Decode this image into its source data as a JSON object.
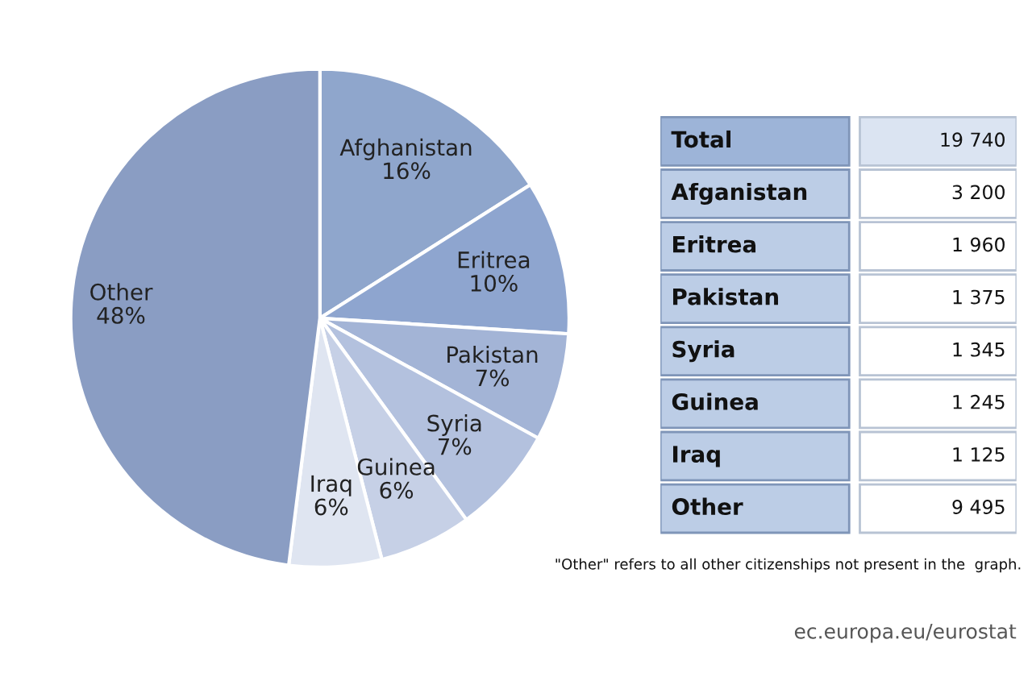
{
  "chart_data": [
    {
      "type": "pie",
      "categories": [
        "Afghanistan",
        "Eritrea",
        "Pakistan",
        "Syria",
        "Guinea",
        "Iraq",
        "Other"
      ],
      "values": [
        16,
        10,
        7,
        7,
        6,
        6,
        48
      ],
      "value_labels": [
        "16%",
        "10%",
        "7%",
        "7%",
        "6%",
        "6%",
        "48%"
      ],
      "colors": [
        "#8fa6cc",
        "#8ea5cf",
        "#a3b4d6",
        "#b3c1de",
        "#c6d0e6",
        "#dfe5f1",
        "#8a9dc3"
      ],
      "annotations": [
        "ec.europa.eu/eurostat"
      ]
    },
    {
      "type": "other",
      "categories": [
        "Total",
        "Afganistan",
        "Eritrea",
        "Pakistan",
        "Syria",
        "Guinea",
        "Iraq",
        "Other"
      ],
      "value_labels": [
        "19 740",
        "3 200",
        "1 960",
        "1 375",
        "1 345",
        "1 245",
        "1 125",
        "9 495"
      ],
      "annotations": [
        "\"Other\" refers to all other citizenships not present in the  graph."
      ]
    }
  ]
}
